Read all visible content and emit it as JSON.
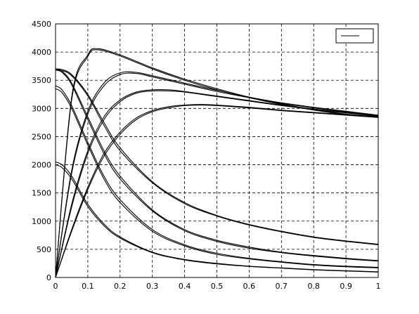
{
  "chart_data": {
    "type": "line",
    "title": "",
    "xlabel": "",
    "ylabel": "",
    "xlim": [
      0,
      1
    ],
    "ylim": [
      0,
      4500
    ],
    "grid": true,
    "legend_position": "top-right",
    "x_ticks": [
      "0",
      "0.1",
      "0.2",
      "0.3",
      "0.4",
      "0.5",
      "0.6",
      "0.7",
      "0.8",
      "0.9",
      "1"
    ],
    "y_ticks": [
      "0",
      "500",
      "1000",
      "1500",
      "2000",
      "2500",
      "3000",
      "3500",
      "4000",
      "4500"
    ],
    "line_color": "#000000",
    "series": [
      {
        "x": [
          0,
          0.05,
          0.1,
          0.13,
          0.2,
          0.3,
          0.4,
          0.5,
          0.6,
          0.7,
          0.8,
          0.9,
          1.0
        ],
        "values": [
          0,
          3200,
          3950,
          4060,
          3950,
          3720,
          3520,
          3350,
          3200,
          3080,
          2980,
          2900,
          2850
        ]
      },
      {
        "x": [
          0,
          0.05,
          0.1,
          0.13,
          0.2,
          0.3,
          0.4,
          0.5,
          0.6,
          0.7,
          0.8,
          0.9,
          1.0
        ],
        "values": [
          0,
          3150,
          3920,
          4040,
          3930,
          3700,
          3500,
          3330,
          3190,
          3070,
          2970,
          2890,
          2840
        ]
      },
      {
        "x": [
          0,
          0.05,
          0.1,
          0.15,
          0.2,
          0.25,
          0.3,
          0.4,
          0.5,
          0.6,
          0.7,
          0.8,
          0.9,
          1.0
        ],
        "values": [
          0,
          1900,
          2950,
          3450,
          3630,
          3640,
          3580,
          3450,
          3320,
          3200,
          3100,
          3020,
          2950,
          2880
        ]
      },
      {
        "x": [
          0,
          0.05,
          0.1,
          0.15,
          0.2,
          0.25,
          0.3,
          0.4,
          0.5,
          0.6,
          0.7,
          0.8,
          0.9,
          1.0
        ],
        "values": [
          0,
          1850,
          2900,
          3400,
          3600,
          3620,
          3560,
          3430,
          3300,
          3190,
          3090,
          3010,
          2940,
          2870
        ]
      },
      {
        "x": [
          0,
          0.05,
          0.1,
          0.15,
          0.2,
          0.25,
          0.3,
          0.35,
          0.4,
          0.5,
          0.6,
          0.7,
          0.8,
          0.9,
          1.0
        ],
        "values": [
          0,
          1300,
          2250,
          2850,
          3150,
          3290,
          3330,
          3330,
          3300,
          3220,
          3140,
          3060,
          2990,
          2930,
          2870
        ]
      },
      {
        "x": [
          0,
          0.05,
          0.1,
          0.15,
          0.2,
          0.25,
          0.3,
          0.35,
          0.4,
          0.5,
          0.6,
          0.7,
          0.8,
          0.9,
          1.0
        ],
        "values": [
          0,
          1250,
          2200,
          2800,
          3120,
          3270,
          3310,
          3310,
          3290,
          3210,
          3130,
          3050,
          2980,
          2920,
          2860
        ]
      },
      {
        "x": [
          0,
          0.05,
          0.1,
          0.15,
          0.2,
          0.25,
          0.3,
          0.35,
          0.4,
          0.45,
          0.5,
          0.6,
          0.7,
          0.8,
          0.9,
          1.0
        ],
        "values": [
          0,
          850,
          1600,
          2200,
          2580,
          2830,
          2960,
          3030,
          3060,
          3070,
          3060,
          3020,
          2970,
          2930,
          2890,
          2850
        ]
      },
      {
        "x": [
          0,
          0.05,
          0.1,
          0.15,
          0.2,
          0.25,
          0.3,
          0.35,
          0.4,
          0.45,
          0.5,
          0.6,
          0.7,
          0.8,
          0.9,
          1.0
        ],
        "values": [
          0,
          820,
          1560,
          2150,
          2540,
          2800,
          2940,
          3010,
          3050,
          3060,
          3050,
          3010,
          2960,
          2920,
          2880,
          2840
        ]
      },
      {
        "x": [
          0,
          0.02,
          0.05,
          0.1,
          0.15,
          0.2,
          0.3,
          0.4,
          0.5,
          0.6,
          0.7,
          0.8,
          0.9,
          1.0
        ],
        "values": [
          3700,
          3690,
          3600,
          3250,
          2750,
          2300,
          1700,
          1330,
          1100,
          940,
          820,
          720,
          650,
          590
        ]
      },
      {
        "x": [
          0,
          0.02,
          0.05,
          0.1,
          0.15,
          0.2,
          0.3,
          0.4,
          0.5,
          0.6,
          0.7,
          0.8,
          0.9,
          1.0
        ],
        "values": [
          3680,
          3670,
          3580,
          3220,
          2700,
          2250,
          1680,
          1310,
          1090,
          930,
          810,
          710,
          640,
          580
        ]
      },
      {
        "x": [
          0,
          0.02,
          0.05,
          0.1,
          0.15,
          0.2,
          0.3,
          0.4,
          0.5,
          0.6,
          0.7,
          0.8,
          0.9,
          1.0
        ],
        "values": [
          3700,
          3660,
          3450,
          2850,
          2250,
          1800,
          1200,
          850,
          660,
          540,
          450,
          390,
          340,
          300
        ]
      },
      {
        "x": [
          0,
          0.02,
          0.05,
          0.1,
          0.15,
          0.2,
          0.3,
          0.4,
          0.5,
          0.6,
          0.7,
          0.8,
          0.9,
          1.0
        ],
        "values": [
          3680,
          3640,
          3420,
          2800,
          2200,
          1750,
          1180,
          830,
          640,
          520,
          440,
          380,
          330,
          290
        ]
      },
      {
        "x": [
          0,
          0.02,
          0.05,
          0.1,
          0.15,
          0.2,
          0.3,
          0.4,
          0.5,
          0.6,
          0.7,
          0.8,
          0.9,
          1.0
        ],
        "values": [
          3400,
          3330,
          3050,
          2400,
          1800,
          1380,
          850,
          580,
          430,
          340,
          280,
          230,
          200,
          180
        ]
      },
      {
        "x": [
          0,
          0.02,
          0.05,
          0.1,
          0.15,
          0.2,
          0.3,
          0.4,
          0.5,
          0.6,
          0.7,
          0.8,
          0.9,
          1.0
        ],
        "values": [
          3350,
          3280,
          3000,
          2350,
          1750,
          1330,
          820,
          560,
          410,
          330,
          270,
          220,
          190,
          170
        ]
      },
      {
        "x": [
          0,
          0.02,
          0.05,
          0.1,
          0.15,
          0.2,
          0.3,
          0.4,
          0.5,
          0.6,
          0.7,
          0.8,
          0.9,
          1.0
        ],
        "values": [
          2050,
          2000,
          1800,
          1300,
          950,
          720,
          450,
          320,
          250,
          200,
          170,
          140,
          120,
          100
        ]
      },
      {
        "x": [
          0,
          0.02,
          0.05,
          0.1,
          0.15,
          0.2,
          0.3,
          0.4,
          0.5,
          0.6,
          0.7,
          0.8,
          0.9,
          1.0
        ],
        "values": [
          2000,
          1950,
          1750,
          1260,
          920,
          700,
          440,
          310,
          240,
          195,
          165,
          135,
          115,
          95
        ]
      }
    ]
  }
}
